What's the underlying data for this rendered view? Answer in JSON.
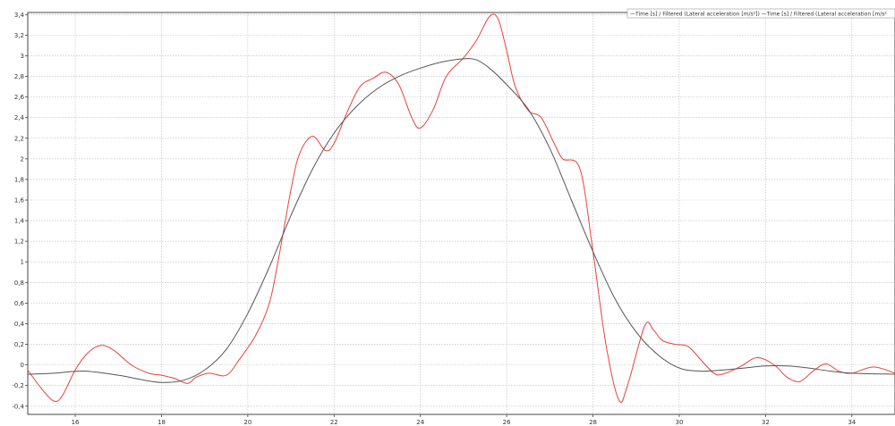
{
  "chart_data": {
    "type": "line",
    "xlim": [
      14.9,
      35.0
    ],
    "ylim": [
      -0.48,
      3.42
    ],
    "x_ticks": [
      16,
      18,
      20,
      22,
      24,
      26,
      28,
      30,
      32,
      34
    ],
    "y_ticks": [
      "3,4",
      "3,2",
      "3",
      "2,8",
      "2,6",
      "2,4",
      "2,2",
      "2",
      "1,8",
      "1,6",
      "1,4",
      "1,2",
      "1",
      "0,8",
      "0,6",
      "0,4",
      "0,2",
      "0",
      "-0,2",
      "-0,4"
    ],
    "y_tick_values": [
      3.4,
      3.2,
      3.0,
      2.8,
      2.6,
      2.4,
      2.2,
      2.0,
      1.8,
      1.6,
      1.4,
      1.2,
      1.0,
      0.8,
      0.6,
      0.4,
      0.2,
      0.0,
      -0.2,
      -0.4
    ],
    "grid": true,
    "legend_position": "top-right",
    "legend_text": "—Time [s] / Filtered (Lateral acceleration [m/s²]) —Time [s] / Filtered (Lateral acceleration [m/s²",
    "series": [
      {
        "name": "Time [s] / Filtered (Lateral acceleration [m/s²])",
        "color": "#e8413c",
        "points": [
          [
            14.9,
            -0.05
          ],
          [
            15.2,
            -0.22
          ],
          [
            15.5,
            -0.35
          ],
          [
            15.7,
            -0.3
          ],
          [
            16.0,
            -0.05
          ],
          [
            16.3,
            0.12
          ],
          [
            16.6,
            0.19
          ],
          [
            16.9,
            0.14
          ],
          [
            17.3,
            0.0
          ],
          [
            17.7,
            -0.08
          ],
          [
            18.0,
            -0.1
          ],
          [
            18.3,
            -0.13
          ],
          [
            18.6,
            -0.18
          ],
          [
            18.8,
            -0.12
          ],
          [
            19.1,
            -0.08
          ],
          [
            19.5,
            -0.1
          ],
          [
            19.8,
            0.05
          ],
          [
            20.2,
            0.3
          ],
          [
            20.5,
            0.6
          ],
          [
            20.7,
            1.0
          ],
          [
            21.0,
            1.7
          ],
          [
            21.2,
            2.05
          ],
          [
            21.5,
            2.22
          ],
          [
            21.8,
            2.08
          ],
          [
            22.0,
            2.15
          ],
          [
            22.3,
            2.45
          ],
          [
            22.6,
            2.7
          ],
          [
            22.9,
            2.78
          ],
          [
            23.2,
            2.84
          ],
          [
            23.5,
            2.72
          ],
          [
            23.8,
            2.4
          ],
          [
            24.0,
            2.3
          ],
          [
            24.3,
            2.48
          ],
          [
            24.6,
            2.8
          ],
          [
            25.0,
            2.98
          ],
          [
            25.3,
            3.15
          ],
          [
            25.6,
            3.38
          ],
          [
            25.8,
            3.36
          ],
          [
            26.0,
            3.05
          ],
          [
            26.2,
            2.7
          ],
          [
            26.5,
            2.47
          ],
          [
            26.8,
            2.4
          ],
          [
            27.1,
            2.15
          ],
          [
            27.3,
            2.0
          ],
          [
            27.7,
            1.9
          ],
          [
            28.0,
            1.1
          ],
          [
            28.3,
            0.2
          ],
          [
            28.6,
            -0.34
          ],
          [
            28.8,
            -0.2
          ],
          [
            29.2,
            0.38
          ],
          [
            29.4,
            0.34
          ],
          [
            29.6,
            0.24
          ],
          [
            29.9,
            0.2
          ],
          [
            30.2,
            0.18
          ],
          [
            30.5,
            0.05
          ],
          [
            30.8,
            -0.08
          ],
          [
            31.0,
            -0.09
          ],
          [
            31.4,
            -0.02
          ],
          [
            31.8,
            0.07
          ],
          [
            32.2,
            0.0
          ],
          [
            32.5,
            -0.12
          ],
          [
            32.8,
            -0.16
          ],
          [
            33.1,
            -0.06
          ],
          [
            33.4,
            0.01
          ],
          [
            33.7,
            -0.06
          ],
          [
            34.0,
            -0.08
          ],
          [
            34.5,
            -0.02
          ],
          [
            35.0,
            -0.08
          ]
        ]
      },
      {
        "name": "Time [s] / Filtered (Lateral acceleration [m/s²])",
        "color": "#555555",
        "points": [
          [
            14.9,
            -0.09
          ],
          [
            15.5,
            -0.08
          ],
          [
            16.2,
            -0.06
          ],
          [
            17.0,
            -0.1
          ],
          [
            17.5,
            -0.14
          ],
          [
            18.0,
            -0.17
          ],
          [
            18.5,
            -0.15
          ],
          [
            19.0,
            -0.05
          ],
          [
            19.5,
            0.15
          ],
          [
            20.0,
            0.5
          ],
          [
            20.5,
            0.95
          ],
          [
            21.0,
            1.45
          ],
          [
            21.5,
            1.9
          ],
          [
            22.0,
            2.25
          ],
          [
            22.5,
            2.5
          ],
          [
            23.0,
            2.68
          ],
          [
            23.5,
            2.8
          ],
          [
            24.0,
            2.88
          ],
          [
            24.5,
            2.94
          ],
          [
            25.0,
            2.97
          ],
          [
            25.3,
            2.96
          ],
          [
            25.6,
            2.88
          ],
          [
            26.0,
            2.72
          ],
          [
            26.5,
            2.48
          ],
          [
            27.0,
            2.1
          ],
          [
            27.5,
            1.6
          ],
          [
            28.0,
            1.1
          ],
          [
            28.5,
            0.65
          ],
          [
            29.0,
            0.32
          ],
          [
            29.5,
            0.1
          ],
          [
            30.0,
            -0.03
          ],
          [
            30.5,
            -0.06
          ],
          [
            31.0,
            -0.05
          ],
          [
            31.5,
            -0.03
          ],
          [
            32.0,
            -0.01
          ],
          [
            32.5,
            -0.01
          ],
          [
            33.0,
            -0.03
          ],
          [
            33.5,
            -0.06
          ],
          [
            34.0,
            -0.08
          ],
          [
            35.0,
            -0.09
          ]
        ]
      }
    ]
  }
}
